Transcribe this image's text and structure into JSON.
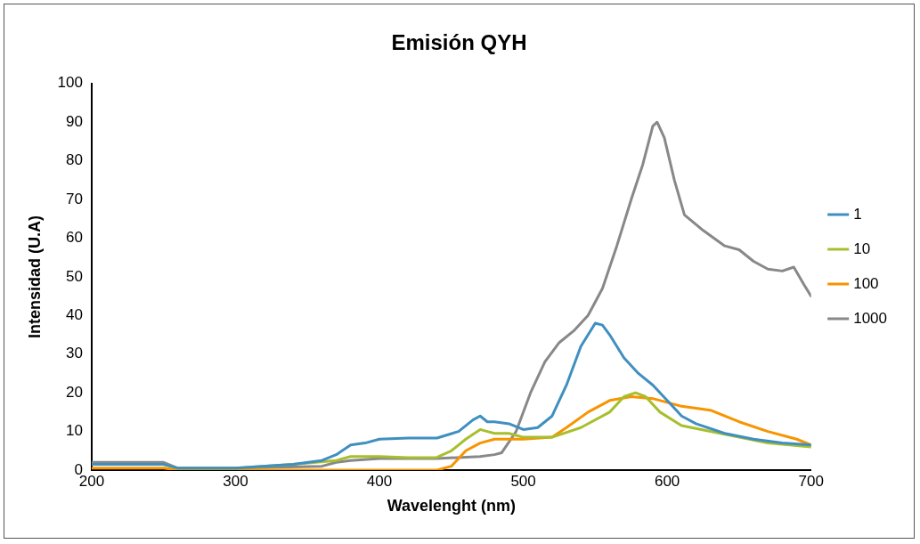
{
  "chart_data": {
    "type": "line",
    "title": "Emisión QYH",
    "xlabel": "Wavelenght (nm)",
    "ylabel": "Intensidad (U.A)",
    "xlim": [
      200,
      700
    ],
    "xticks": [
      200,
      300,
      400,
      500,
      600,
      700
    ],
    "ylim": [
      0,
      100
    ],
    "yticks": [
      0,
      10,
      20,
      30,
      40,
      50,
      60,
      70,
      80,
      90,
      100
    ],
    "grid": false,
    "legend": "right",
    "marker": "none",
    "line_style": "solid",
    "series": [
      {
        "name": "1",
        "color": "#3f8fc0",
        "x": [
          200,
          220,
          250,
          260,
          300,
          340,
          360,
          370,
          380,
          390,
          400,
          420,
          440,
          455,
          465,
          470,
          475,
          480,
          490,
          500,
          510,
          520,
          530,
          540,
          550,
          555,
          560,
          570,
          580,
          590,
          600,
          610,
          620,
          640,
          660,
          680,
          700
        ],
        "values": [
          1.5,
          1.5,
          1.5,
          0.5,
          0.5,
          1.5,
          2.5,
          4,
          6.5,
          7,
          8,
          8.3,
          8.3,
          10,
          13,
          14,
          12.5,
          12.5,
          12,
          10.5,
          11,
          14,
          22,
          32,
          38,
          37.5,
          35,
          29,
          25,
          22,
          18,
          14,
          12,
          9.5,
          8,
          7,
          6.5
        ]
      },
      {
        "name": "10",
        "color": "#a8bf2d",
        "x": [
          200,
          250,
          260,
          300,
          340,
          370,
          380,
          400,
          420,
          440,
          450,
          460,
          470,
          475,
          480,
          490,
          500,
          520,
          540,
          560,
          570,
          578,
          585,
          595,
          610,
          630,
          650,
          670,
          700
        ],
        "values": [
          1.5,
          1.5,
          0.5,
          0.5,
          1.5,
          2.5,
          3.5,
          3.5,
          3.2,
          3.3,
          5,
          8,
          10.5,
          10,
          9.5,
          9.5,
          8.5,
          8.5,
          11,
          15,
          19,
          20,
          19,
          15,
          11.5,
          10,
          8.5,
          7,
          6
        ]
      },
      {
        "name": "100",
        "color": "#f79400",
        "x": [
          200,
          250,
          260,
          440,
          450,
          460,
          470,
          480,
          490,
          500,
          520,
          530,
          545,
          560,
          575,
          590,
          610,
          630,
          650,
          670,
          690,
          700
        ],
        "values": [
          0.5,
          0.5,
          0,
          0,
          1,
          5,
          7,
          8,
          8,
          8,
          8.5,
          11,
          15,
          18,
          19,
          18.5,
          16.5,
          15.5,
          12.5,
          10,
          8,
          6.5
        ]
      },
      {
        "name": "1000",
        "color": "#888888",
        "x": [
          200,
          250,
          260,
          300,
          360,
          370,
          380,
          400,
          440,
          470,
          480,
          485,
          495,
          505,
          515,
          525,
          535,
          545,
          555,
          565,
          575,
          583,
          590,
          593,
          598,
          605,
          612,
          625,
          640,
          650,
          660,
          670,
          680,
          688,
          695,
          700
        ],
        "values": [
          2,
          2,
          0.5,
          0.5,
          1,
          2,
          2.5,
          3,
          3,
          3.5,
          4,
          4.5,
          10,
          20,
          28,
          33,
          36,
          40,
          47,
          58,
          70,
          79,
          89,
          90,
          86,
          75,
          66,
          62,
          58,
          57,
          54,
          52,
          51.5,
          52.5,
          48,
          45
        ]
      }
    ]
  }
}
